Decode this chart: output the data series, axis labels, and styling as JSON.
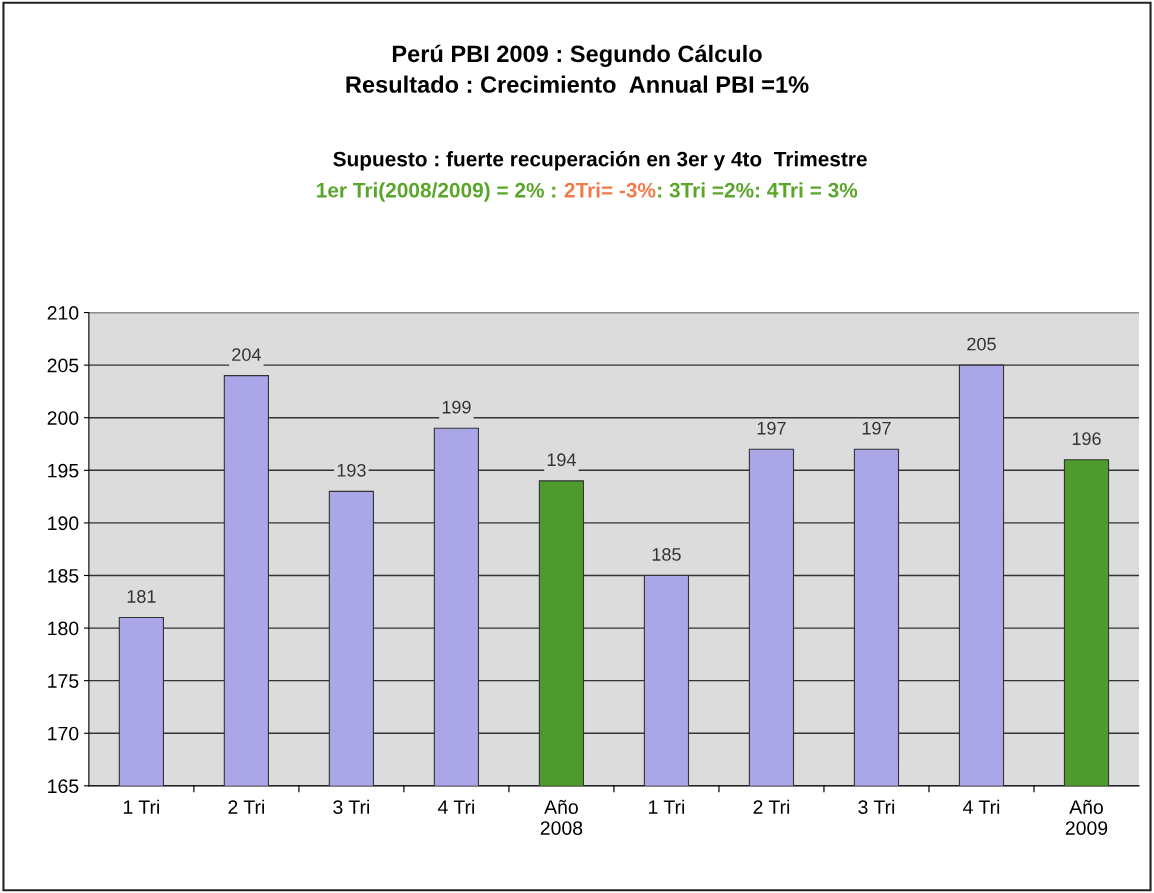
{
  "chart_data": {
    "type": "bar",
    "title": "Perú PBI 2009 : Segundo Cálculo\nResultado : Crecimiento  Annual PBI =1%",
    "subtitle": "Supuesto : fuerte recuperación en 3er y 4to  Trimestre",
    "annotations": [
      "1er Tri(2008/2009) = 2% :",
      " 2Tri= -3%",
      ": 3Tri =2%: 4Tri = 3%"
    ],
    "categories": [
      "1 Tri",
      "2 Tri",
      "3 Tri",
      "4 Tri",
      "Año\n2008",
      "1 Tri",
      "2 Tri",
      "3 Tri",
      "4 Tri",
      "Año\n2009"
    ],
    "values": [
      181,
      204,
      193,
      199,
      194,
      185,
      197,
      197,
      205,
      196
    ],
    "colors": [
      "#aaa6e8",
      "#aaa6e8",
      "#aaa6e8",
      "#aaa6e8",
      "#4e9a2c",
      "#aaa6e8",
      "#aaa6e8",
      "#aaa6e8",
      "#aaa6e8",
      "#4e9a2c"
    ],
    "ylim": [
      165,
      210
    ],
    "yticks": [
      165,
      170,
      175,
      180,
      185,
      190,
      195,
      200,
      205,
      210
    ],
    "grid": "y",
    "data_labels": true
  }
}
